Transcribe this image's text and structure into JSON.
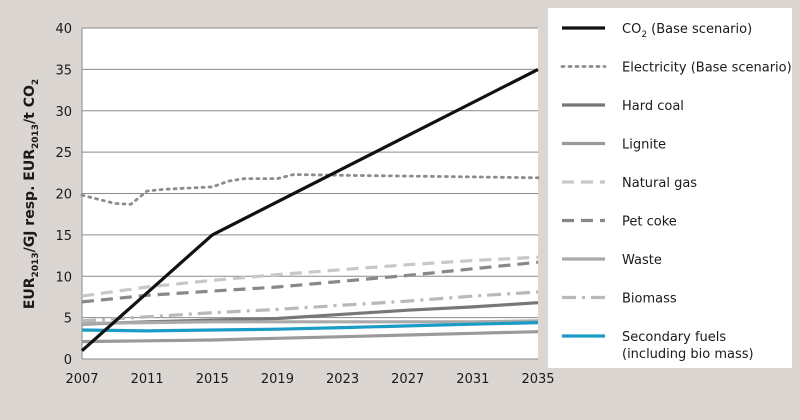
{
  "chart_data": {
    "type": "line",
    "title": "",
    "xlabel": "",
    "ylabel": {
      "parts": [
        "EUR",
        "2013",
        "/GJ resp. EUR",
        "2013",
        "/t CO",
        "2"
      ]
    },
    "xlim": [
      2007,
      2035
    ],
    "ylim": [
      0,
      40
    ],
    "x_ticks": [
      "2007",
      "2011",
      "2015",
      "2019",
      "2023",
      "2027",
      "2031",
      "2035"
    ],
    "y_ticks": [
      "0",
      "5",
      "10",
      "15",
      "20",
      "25",
      "30",
      "35",
      "40"
    ],
    "grid": "horizontal",
    "legend_position": "right",
    "series": [
      {
        "name": "CO₂ (Base scenario)",
        "color": "#111111",
        "style": "solid",
        "width": 3.2,
        "points": [
          [
            2007,
            1.0
          ],
          [
            2015,
            15.0
          ],
          [
            2035,
            35.0
          ]
        ]
      },
      {
        "name": "Electricity (Base scenario)",
        "color": "#8c8c8c",
        "style": "dotted",
        "width": 2.8,
        "points": [
          [
            2007,
            19.8
          ],
          [
            2008,
            19.3
          ],
          [
            2009,
            18.8
          ],
          [
            2010,
            18.7
          ],
          [
            2011,
            20.3
          ],
          [
            2012,
            20.5
          ],
          [
            2013,
            20.6
          ],
          [
            2015,
            20.8
          ],
          [
            2016,
            21.5
          ],
          [
            2017,
            21.8
          ],
          [
            2019,
            21.8
          ],
          [
            2020,
            22.3
          ],
          [
            2023,
            22.2
          ],
          [
            2027,
            22.1
          ],
          [
            2031,
            22.0
          ],
          [
            2035,
            21.9
          ]
        ]
      },
      {
        "name": "Hard coal",
        "color": "#777777",
        "style": "solid",
        "width": 3.2,
        "points": [
          [
            2007,
            4.2
          ],
          [
            2011,
            4.5
          ],
          [
            2015,
            4.7
          ],
          [
            2019,
            4.9
          ],
          [
            2023,
            5.4
          ],
          [
            2027,
            5.9
          ],
          [
            2031,
            6.3
          ],
          [
            2035,
            6.8
          ]
        ]
      },
      {
        "name": "Lignite",
        "color": "#9a9a9a",
        "style": "solid",
        "width": 3.2,
        "points": [
          [
            2007,
            2.1
          ],
          [
            2011,
            2.2
          ],
          [
            2015,
            2.3
          ],
          [
            2019,
            2.5
          ],
          [
            2023,
            2.7
          ],
          [
            2027,
            2.9
          ],
          [
            2031,
            3.1
          ],
          [
            2035,
            3.3
          ]
        ]
      },
      {
        "name": "Natural gas",
        "color": "#c8c8c8",
        "style": "dashed",
        "width": 3.2,
        "points": [
          [
            2007,
            7.6
          ],
          [
            2011,
            8.7
          ],
          [
            2015,
            9.5
          ],
          [
            2019,
            10.2
          ],
          [
            2023,
            10.8
          ],
          [
            2027,
            11.4
          ],
          [
            2031,
            11.9
          ],
          [
            2035,
            12.3
          ]
        ]
      },
      {
        "name": "Pet coke",
        "color": "#888888",
        "style": "dashed",
        "width": 3.2,
        "points": [
          [
            2007,
            6.9
          ],
          [
            2011,
            7.7
          ],
          [
            2015,
            8.2
          ],
          [
            2019,
            8.7
          ],
          [
            2023,
            9.4
          ],
          [
            2027,
            10.1
          ],
          [
            2031,
            10.9
          ],
          [
            2035,
            11.7
          ]
        ]
      },
      {
        "name": "Waste",
        "color": "#aaaaaa",
        "style": "solid",
        "width": 3.2,
        "points": [
          [
            2007,
            4.3
          ],
          [
            2011,
            4.4
          ],
          [
            2015,
            4.5
          ],
          [
            2019,
            4.5
          ],
          [
            2023,
            4.5
          ],
          [
            2027,
            4.5
          ],
          [
            2031,
            4.5
          ],
          [
            2035,
            4.6
          ]
        ]
      },
      {
        "name": "Biomass",
        "color": "#b9b9b9",
        "style": "dashdot",
        "width": 3.2,
        "points": [
          [
            2007,
            4.6
          ],
          [
            2011,
            5.1
          ],
          [
            2015,
            5.6
          ],
          [
            2019,
            6.0
          ],
          [
            2023,
            6.5
          ],
          [
            2027,
            7.0
          ],
          [
            2031,
            7.6
          ],
          [
            2035,
            8.1
          ]
        ]
      },
      {
        "name": "Secondary fuels\n(including bio mass)",
        "color": "#1b9cc6",
        "style": "solid",
        "width": 3.2,
        "points": [
          [
            2007,
            3.5
          ],
          [
            2011,
            3.4
          ],
          [
            2015,
            3.5
          ],
          [
            2019,
            3.6
          ],
          [
            2023,
            3.8
          ],
          [
            2027,
            4.0
          ],
          [
            2031,
            4.2
          ],
          [
            2035,
            4.4
          ]
        ]
      }
    ]
  }
}
